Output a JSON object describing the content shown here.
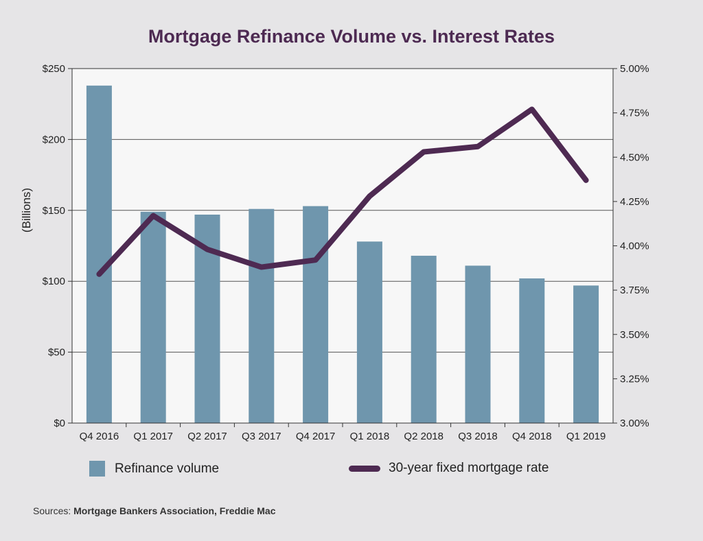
{
  "chart_data": {
    "type": "bar",
    "title": "Mortgage Refinance Volume vs. Interest Rates",
    "categories": [
      "Q4 2016",
      "Q1 2017",
      "Q2 2017",
      "Q3 2017",
      "Q4 2017",
      "Q1 2018",
      "Q2 2018",
      "Q3 2018",
      "Q4 2018",
      "Q1 2019"
    ],
    "ylabel": "(Billions)",
    "ylim": [
      0,
      250
    ],
    "yticks": [
      "$0",
      "$50",
      "$100",
      "$150",
      "$200",
      "$250"
    ],
    "y2lim": [
      3.0,
      5.0
    ],
    "y2ticks": [
      "3.00%",
      "3.25%",
      "3.50%",
      "3.75%",
      "4.00%",
      "4.25%",
      "4.50%",
      "4.75%",
      "5.00%"
    ],
    "grid": true,
    "legend_position": "bottom",
    "series": [
      {
        "name": "Refinance volume",
        "type": "bar",
        "axis": "left",
        "color": "#6f96ad",
        "values": [
          238,
          149,
          147,
          151,
          153,
          128,
          118,
          111,
          102,
          97
        ]
      },
      {
        "name": "30-year fixed mortgage rate",
        "type": "line",
        "axis": "right",
        "color": "#4e2a52",
        "values": [
          3.84,
          4.17,
          3.98,
          3.88,
          3.92,
          4.28,
          4.53,
          4.56,
          4.77,
          4.37
        ]
      }
    ]
  },
  "sources": {
    "label": "Sources:",
    "text": "Mortgage Bankers Association, Freddie Mac"
  }
}
